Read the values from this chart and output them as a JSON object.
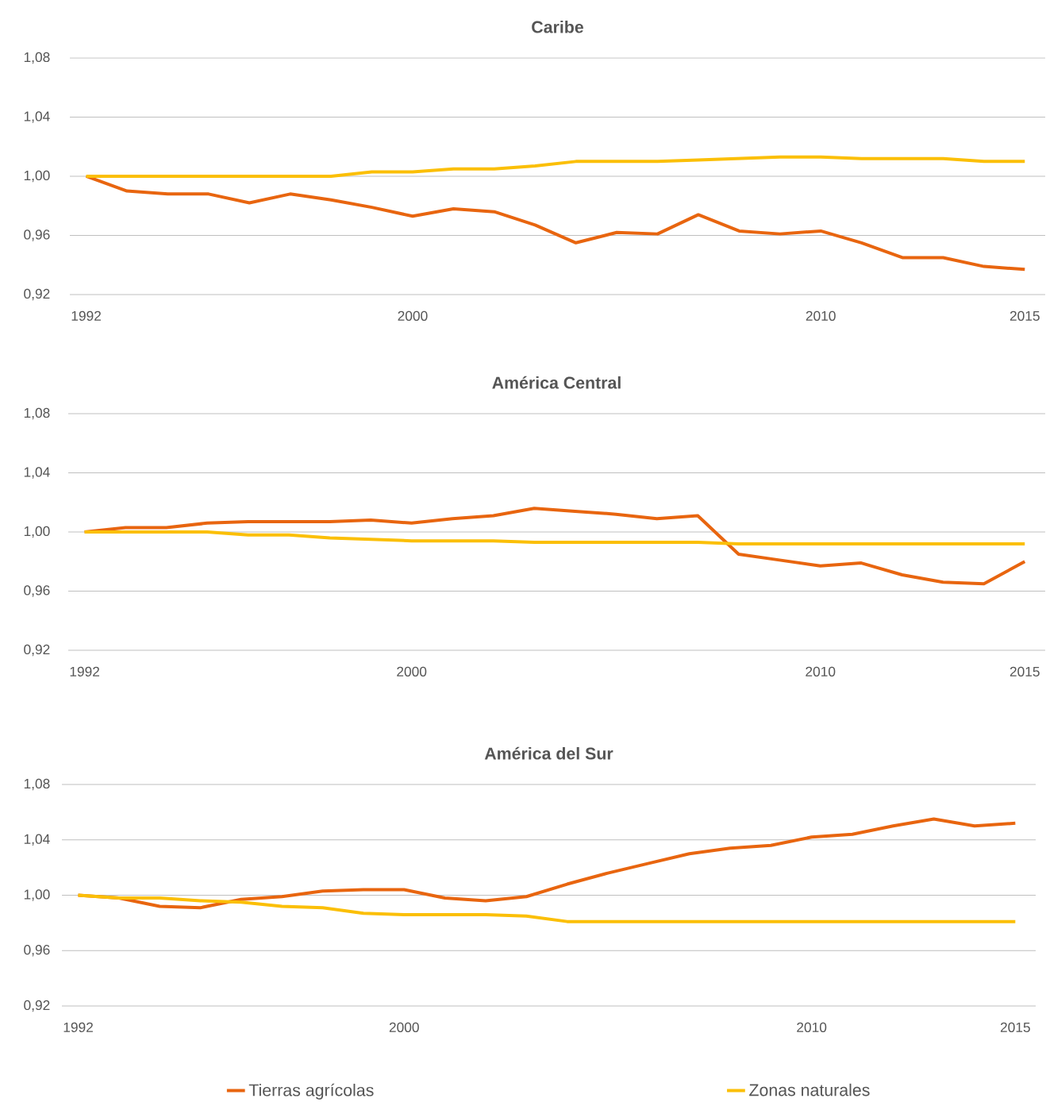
{
  "chart_data": [
    {
      "type": "line",
      "title": "Caribe",
      "x": [
        1992,
        1993,
        1994,
        1995,
        1996,
        1997,
        1998,
        1999,
        2000,
        2001,
        2002,
        2003,
        2004,
        2005,
        2006,
        2007,
        2008,
        2009,
        2010,
        2011,
        2012,
        2013,
        2014,
        2015
      ],
      "series": [
        {
          "color": "#e8650f",
          "values": [
            1.0,
            0.99,
            0.988,
            0.988,
            0.982,
            0.988,
            0.984,
            0.979,
            0.973,
            0.978,
            0.976,
            0.967,
            0.955,
            0.962,
            0.961,
            0.974,
            0.963,
            0.961,
            0.963,
            0.955,
            0.945,
            0.945,
            0.939,
            0.937
          ]
        },
        {
          "color": "#fbbf07",
          "values": [
            1.0,
            1.0,
            1.0,
            1.0,
            1.0,
            1.0,
            1.0,
            1.003,
            1.003,
            1.005,
            1.005,
            1.007,
            1.01,
            1.01,
            1.01,
            1.011,
            1.012,
            1.013,
            1.013,
            1.012,
            1.012,
            1.012,
            1.01,
            1.01
          ]
        }
      ],
      "xlim": [
        1991.6,
        2015.5
      ],
      "ylim": [
        0.92,
        1.08
      ],
      "xticks": [
        1992,
        2000,
        2010,
        2015
      ],
      "yticks": [
        {
          "value": 0.92,
          "label": "0,92"
        },
        {
          "value": 0.96,
          "label": "0,96"
        },
        {
          "value": 1.0,
          "label": "1,00"
        },
        {
          "value": 1.04,
          "label": "1,04"
        },
        {
          "value": 1.08,
          "label": "1,08"
        }
      ],
      "grid": "y",
      "legend": false,
      "line_style": "solid",
      "marker": "none"
    },
    {
      "type": "line",
      "title": "América Central",
      "x": [
        1992,
        1993,
        1994,
        1995,
        1996,
        1997,
        1998,
        1999,
        2000,
        2001,
        2002,
        2003,
        2004,
        2005,
        2006,
        2007,
        2008,
        2009,
        2010,
        2011,
        2012,
        2013,
        2014,
        2015
      ],
      "series": [
        {
          "color": "#e8650f",
          "values": [
            1.0,
            1.003,
            1.003,
            1.006,
            1.007,
            1.007,
            1.007,
            1.008,
            1.006,
            1.009,
            1.011,
            1.016,
            1.014,
            1.012,
            1.009,
            1.011,
            0.985,
            0.981,
            0.977,
            0.979,
            0.971,
            0.966,
            0.965,
            0.98
          ]
        },
        {
          "color": "#fbbf07",
          "values": [
            1.0,
            1.0,
            1.0,
            1.0,
            0.998,
            0.998,
            0.996,
            0.995,
            0.994,
            0.994,
            0.994,
            0.993,
            0.993,
            0.993,
            0.993,
            0.993,
            0.992,
            0.992,
            0.992,
            0.992,
            0.992,
            0.992,
            0.992,
            0.992
          ]
        }
      ],
      "xlim": [
        1991.6,
        2015.5
      ],
      "ylim": [
        0.92,
        1.08
      ],
      "xticks": [
        1992,
        2000,
        2010,
        2015
      ],
      "yticks": [
        {
          "value": 0.92,
          "label": "0,92"
        },
        {
          "value": 0.96,
          "label": "0,96"
        },
        {
          "value": 1.0,
          "label": "1,00"
        },
        {
          "value": 1.04,
          "label": "1,04"
        },
        {
          "value": 1.08,
          "label": "1,08"
        }
      ],
      "grid": "y",
      "legend": false,
      "line_style": "solid",
      "marker": "none"
    },
    {
      "type": "line",
      "title": "América del Sur",
      "x": [
        1992,
        1993,
        1994,
        1995,
        1996,
        1997,
        1998,
        1999,
        2000,
        2001,
        2002,
        2003,
        2004,
        2005,
        2006,
        2007,
        2008,
        2009,
        2010,
        2011,
        2012,
        2013,
        2014,
        2015
      ],
      "series": [
        {
          "name": "Tierras agrícolas",
          "color": "#e8650f",
          "values": [
            1.0,
            0.998,
            0.992,
            0.991,
            0.997,
            0.999,
            1.003,
            1.004,
            1.004,
            0.998,
            0.996,
            0.999,
            1.008,
            1.016,
            1.023,
            1.03,
            1.034,
            1.036,
            1.042,
            1.044,
            1.05,
            1.055,
            1.05,
            1.052
          ]
        },
        {
          "name": "Zonas naturales",
          "color": "#fbbf07",
          "values": [
            1.0,
            0.998,
            0.998,
            0.996,
            0.995,
            0.992,
            0.991,
            0.987,
            0.986,
            0.986,
            0.986,
            0.985,
            0.981,
            0.981,
            0.981,
            0.981,
            0.981,
            0.981,
            0.981,
            0.981,
            0.981,
            0.981,
            0.981,
            0.981
          ]
        }
      ],
      "xlim": [
        1991.6,
        2015.5
      ],
      "ylim": [
        0.92,
        1.08
      ],
      "xticks": [
        1992,
        2000,
        2010,
        2015
      ],
      "yticks": [
        {
          "value": 0.92,
          "label": "0,92"
        },
        {
          "value": 0.96,
          "label": "0,96"
        },
        {
          "value": 1.0,
          "label": "1,00"
        },
        {
          "value": 1.04,
          "label": "1,04"
        },
        {
          "value": 1.08,
          "label": "1,08"
        }
      ],
      "grid": "y",
      "legend": "bottom",
      "line_style": "solid",
      "marker": "none"
    }
  ]
}
